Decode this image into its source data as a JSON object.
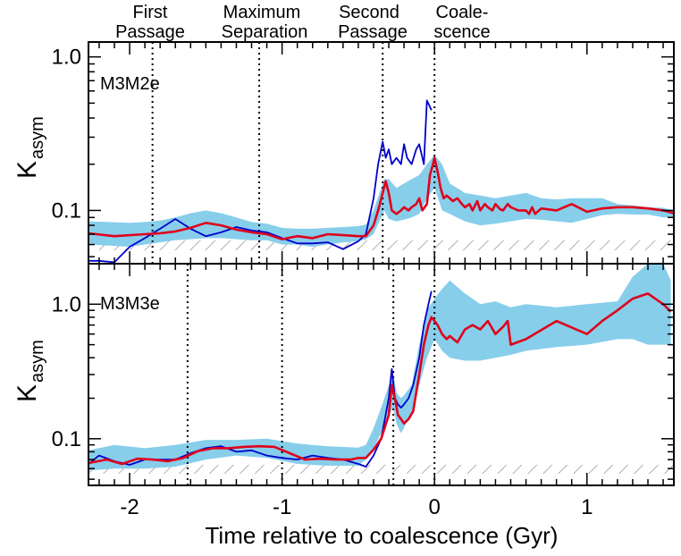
{
  "chart_data": [
    {
      "type": "line",
      "panel": "top",
      "panel_label": "M3M2e",
      "ylabel_main": "K",
      "ylabel_sub": "asym",
      "yscale": "log",
      "ylim": [
        0.045,
        1.25
      ],
      "xlim": [
        -2.27,
        1.57
      ],
      "yticks": [
        {
          "v": 0.1,
          "label": "0.1"
        },
        {
          "v": 1.0,
          "label": "1.0"
        }
      ],
      "threshold_band": [
        0.055,
        0.064
      ],
      "events": [
        {
          "x": -1.85,
          "label_top": "First",
          "label_bottom": "Passage"
        },
        {
          "x": -1.15,
          "label_top": "Maximum",
          "label_bottom": "Separation"
        },
        {
          "x": -0.34,
          "label_top": "Second",
          "label_bottom": "Passage"
        },
        {
          "x": 0.0,
          "label_top": "Coale-",
          "label_bottom": "scence"
        }
      ],
      "shaded_range": {
        "x": [
          -2.27,
          -2.0,
          -1.9,
          -1.8,
          -1.7,
          -1.6,
          -1.5,
          -1.4,
          -1.3,
          -1.2,
          -1.1,
          -1.0,
          -0.9,
          -0.8,
          -0.7,
          -0.6,
          -0.5,
          -0.45,
          -0.4,
          -0.35,
          -0.33,
          -0.3,
          -0.25,
          -0.2,
          -0.15,
          -0.1,
          -0.05,
          0.0,
          0.05,
          0.1,
          0.2,
          0.3,
          0.4,
          0.5,
          0.6,
          0.7,
          0.8,
          0.9,
          1.0,
          1.1,
          1.2,
          1.3,
          1.4,
          1.5,
          1.57
        ],
        "lower": [
          0.06,
          0.058,
          0.06,
          0.062,
          0.064,
          0.065,
          0.066,
          0.066,
          0.065,
          0.064,
          0.064,
          0.06,
          0.06,
          0.058,
          0.06,
          0.062,
          0.063,
          0.065,
          0.07,
          0.09,
          0.1,
          0.088,
          0.085,
          0.087,
          0.09,
          0.095,
          0.12,
          0.14,
          0.1,
          0.095,
          0.085,
          0.08,
          0.082,
          0.085,
          0.088,
          0.087,
          0.085,
          0.083,
          0.088,
          0.093,
          0.095,
          0.094,
          0.094,
          0.09,
          0.09
        ],
        "upper": [
          0.085,
          0.083,
          0.084,
          0.086,
          0.09,
          0.096,
          0.1,
          0.096,
          0.09,
          0.084,
          0.082,
          0.077,
          0.076,
          0.076,
          0.077,
          0.078,
          0.079,
          0.081,
          0.1,
          0.14,
          0.16,
          0.16,
          0.14,
          0.15,
          0.16,
          0.17,
          0.2,
          0.23,
          0.2,
          0.15,
          0.13,
          0.125,
          0.12,
          0.125,
          0.13,
          0.12,
          0.118,
          0.12,
          0.12,
          0.12,
          0.11,
          0.108,
          0.105,
          0.104,
          0.1
        ]
      },
      "series": [
        {
          "color": "#e0001b",
          "x": [
            -2.27,
            -2.1,
            -1.9,
            -1.8,
            -1.7,
            -1.6,
            -1.5,
            -1.4,
            -1.3,
            -1.2,
            -1.1,
            -1.0,
            -0.9,
            -0.8,
            -0.7,
            -0.6,
            -0.5,
            -0.45,
            -0.4,
            -0.37,
            -0.34,
            -0.32,
            -0.3,
            -0.28,
            -0.25,
            -0.22,
            -0.2,
            -0.17,
            -0.15,
            -0.12,
            -0.1,
            -0.08,
            -0.05,
            -0.03,
            -0.01,
            0.0,
            0.02,
            0.04,
            0.06,
            0.08,
            0.1,
            0.12,
            0.15,
            0.18,
            0.2,
            0.23,
            0.25,
            0.28,
            0.3,
            0.33,
            0.35,
            0.38,
            0.4,
            0.43,
            0.45,
            0.48,
            0.5,
            0.55,
            0.6,
            0.62,
            0.64,
            0.66,
            0.7,
            0.8,
            0.9,
            1.0,
            1.1,
            1.2,
            1.3,
            1.4,
            1.5,
            1.57
          ],
          "y": [
            0.071,
            0.068,
            0.07,
            0.071,
            0.073,
            0.077,
            0.083,
            0.08,
            0.075,
            0.072,
            0.07,
            0.065,
            0.068,
            0.066,
            0.07,
            0.069,
            0.068,
            0.068,
            0.08,
            0.1,
            0.13,
            0.155,
            0.13,
            0.1,
            0.095,
            0.1,
            0.105,
            0.1,
            0.105,
            0.11,
            0.12,
            0.1,
            0.11,
            0.17,
            0.2,
            0.22,
            0.18,
            0.14,
            0.12,
            0.125,
            0.12,
            0.115,
            0.12,
            0.11,
            0.105,
            0.11,
            0.1,
            0.115,
            0.1,
            0.11,
            0.105,
            0.1,
            0.11,
            0.102,
            0.1,
            0.11,
            0.105,
            0.1,
            0.1,
            0.095,
            0.105,
            0.095,
            0.103,
            0.1,
            0.11,
            0.098,
            0.103,
            0.105,
            0.105,
            0.103,
            0.1,
            0.096
          ]
        },
        {
          "color": "#0000cc",
          "x": [
            -2.27,
            -2.2,
            -2.1,
            -2.0,
            -1.9,
            -1.8,
            -1.7,
            -1.6,
            -1.5,
            -1.4,
            -1.3,
            -1.2,
            -1.1,
            -1.0,
            -0.9,
            -0.8,
            -0.7,
            -0.6,
            -0.5,
            -0.45,
            -0.4,
            -0.37,
            -0.34,
            -0.32,
            -0.3,
            -0.28,
            -0.25,
            -0.22,
            -0.2,
            -0.18,
            -0.15,
            -0.12,
            -0.1,
            -0.07,
            -0.05,
            -0.02
          ],
          "y": [
            0.047,
            0.047,
            0.046,
            0.058,
            0.066,
            0.076,
            0.088,
            0.076,
            0.068,
            0.072,
            0.078,
            0.074,
            0.072,
            0.066,
            0.061,
            0.061,
            0.062,
            0.056,
            0.063,
            0.07,
            0.12,
            0.2,
            0.28,
            0.22,
            0.25,
            0.2,
            0.22,
            0.2,
            0.27,
            0.22,
            0.2,
            0.25,
            0.27,
            0.2,
            0.52,
            0.45
          ]
        }
      ]
    },
    {
      "type": "line",
      "panel": "bottom",
      "panel_label": "M3M3e",
      "ylabel_main": "K",
      "ylabel_sub": "asym",
      "yscale": "log",
      "ylim": [
        0.045,
        2.0
      ],
      "xlim": [
        -2.27,
        1.57
      ],
      "xlabel": "Time relative to coalescence (Gyr)",
      "xticks": [
        {
          "v": -2,
          "label": "-2"
        },
        {
          "v": -1,
          "label": "-1"
        },
        {
          "v": 0,
          "label": "0"
        },
        {
          "v": 1,
          "label": "1"
        }
      ],
      "yticks": [
        {
          "v": 0.1,
          "label": "0.1"
        },
        {
          "v": 1.0,
          "label": "1.0"
        }
      ],
      "threshold_band": [
        0.055,
        0.064
      ],
      "events": [
        {
          "x": -1.62
        },
        {
          "x": -1.0
        },
        {
          "x": -0.27
        },
        {
          "x": 0.0
        }
      ],
      "shaded_range": {
        "x": [
          -2.27,
          -2.1,
          -1.9,
          -1.7,
          -1.5,
          -1.3,
          -1.1,
          -0.9,
          -0.7,
          -0.5,
          -0.45,
          -0.4,
          -0.35,
          -0.3,
          -0.27,
          -0.25,
          -0.22,
          -0.2,
          -0.15,
          -0.1,
          -0.05,
          0.0,
          0.05,
          0.1,
          0.2,
          0.3,
          0.4,
          0.5,
          0.6,
          0.8,
          1.0,
          1.2,
          1.3,
          1.4,
          1.5,
          1.55
        ],
        "lower": [
          0.058,
          0.06,
          0.06,
          0.062,
          0.07,
          0.075,
          0.072,
          0.065,
          0.063,
          0.063,
          0.07,
          0.085,
          0.11,
          0.15,
          0.17,
          0.13,
          0.11,
          0.12,
          0.16,
          0.25,
          0.4,
          0.55,
          0.45,
          0.4,
          0.38,
          0.38,
          0.4,
          0.42,
          0.45,
          0.48,
          0.5,
          0.55,
          0.55,
          0.5,
          0.5,
          0.5
        ],
        "upper": [
          0.082,
          0.09,
          0.085,
          0.09,
          0.098,
          0.098,
          0.1,
          0.092,
          0.088,
          0.086,
          0.09,
          0.12,
          0.17,
          0.25,
          0.3,
          0.22,
          0.2,
          0.21,
          0.25,
          0.5,
          0.9,
          1.1,
          1.3,
          1.5,
          1.2,
          1.0,
          1.05,
          0.95,
          1.0,
          0.95,
          1.0,
          1.05,
          1.6,
          2.0,
          2.0,
          1.5
        ]
      },
      "series": [
        {
          "color": "#e0001b",
          "x": [
            -2.27,
            -2.15,
            -2.05,
            -1.95,
            -1.85,
            -1.75,
            -1.65,
            -1.55,
            -1.45,
            -1.35,
            -1.25,
            -1.15,
            -1.05,
            -0.95,
            -0.85,
            -0.75,
            -0.65,
            -0.55,
            -0.5,
            -0.45,
            -0.4,
            -0.35,
            -0.3,
            -0.28,
            -0.26,
            -0.24,
            -0.22,
            -0.2,
            -0.17,
            -0.14,
            -0.1,
            -0.07,
            -0.04,
            -0.02,
            0.0,
            0.02,
            0.05,
            0.08,
            0.1,
            0.15,
            0.2,
            0.25,
            0.3,
            0.35,
            0.4,
            0.45,
            0.48,
            0.5,
            0.6,
            0.8,
            1.0,
            1.1,
            1.2,
            1.3,
            1.4,
            1.5,
            1.55
          ],
          "y": [
            0.066,
            0.07,
            0.065,
            0.071,
            0.07,
            0.068,
            0.072,
            0.081,
            0.085,
            0.085,
            0.087,
            0.088,
            0.087,
            0.078,
            0.07,
            0.071,
            0.07,
            0.07,
            0.072,
            0.072,
            0.083,
            0.1,
            0.15,
            0.25,
            0.2,
            0.15,
            0.14,
            0.13,
            0.14,
            0.16,
            0.3,
            0.5,
            0.7,
            0.8,
            0.75,
            0.7,
            0.6,
            0.55,
            0.58,
            0.52,
            0.65,
            0.7,
            0.65,
            0.75,
            0.6,
            0.68,
            0.75,
            0.5,
            0.55,
            0.75,
            0.6,
            0.75,
            0.9,
            1.1,
            1.2,
            1.0,
            0.88
          ]
        },
        {
          "color": "#0000cc",
          "x": [
            -2.27,
            -2.2,
            -2.1,
            -2.0,
            -1.9,
            -1.8,
            -1.7,
            -1.6,
            -1.5,
            -1.4,
            -1.3,
            -1.2,
            -1.1,
            -1.0,
            -0.9,
            -0.8,
            -0.7,
            -0.6,
            -0.5,
            -0.45,
            -0.4,
            -0.35,
            -0.3,
            -0.28,
            -0.26,
            -0.24,
            -0.22,
            -0.2,
            -0.17,
            -0.14,
            -0.1,
            -0.07,
            -0.04,
            -0.02
          ],
          "y": [
            0.065,
            0.075,
            0.068,
            0.064,
            0.07,
            0.07,
            0.07,
            0.078,
            0.085,
            0.088,
            0.08,
            0.082,
            0.075,
            0.072,
            0.07,
            0.075,
            0.072,
            0.07,
            0.065,
            0.062,
            0.075,
            0.1,
            0.2,
            0.33,
            0.2,
            0.18,
            0.17,
            0.18,
            0.2,
            0.25,
            0.4,
            0.7,
            1.0,
            1.25
          ]
        }
      ]
    }
  ]
}
